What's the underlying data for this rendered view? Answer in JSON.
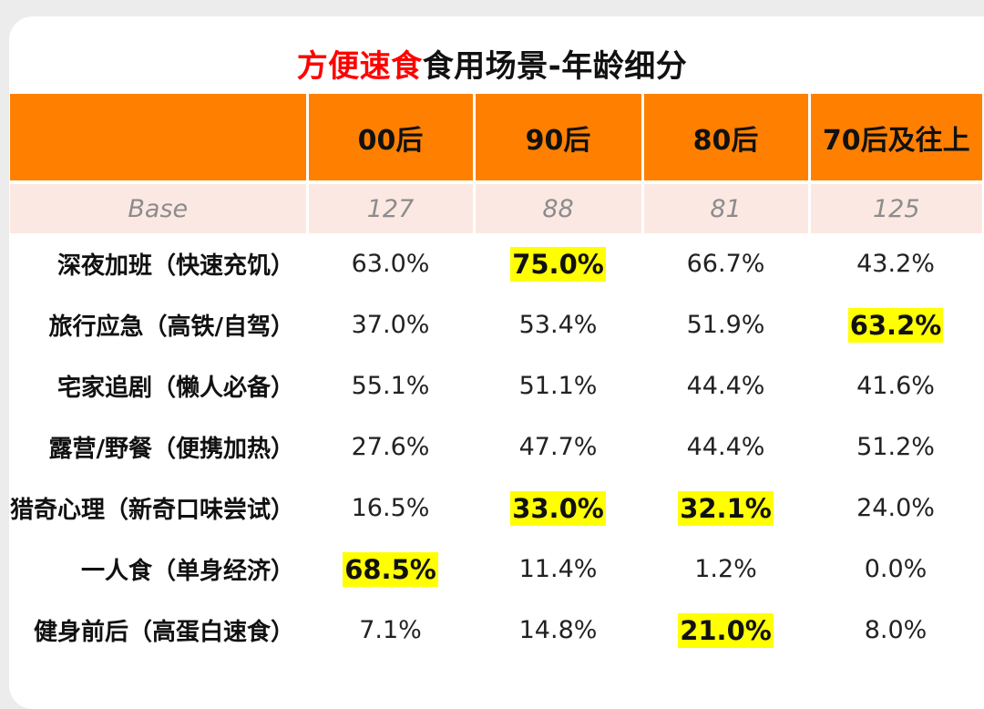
{
  "title": {
    "accent": "方便速食",
    "rest": "食用场景-年龄细分"
  },
  "colors": {
    "header_bg": "#ff8000",
    "base_bg": "#fce8e2",
    "highlight": "#ffff00",
    "title_accent": "#ff0000"
  },
  "chart_data": {
    "type": "table",
    "title": "方便速食食用场景-年龄细分",
    "columns": [
      "00后",
      "90后",
      "80后",
      "70后及往上"
    ],
    "base_label": "Base",
    "base": [
      "127",
      "88",
      "81",
      "125"
    ],
    "rows": [
      {
        "label": "深夜加班（快速充饥）",
        "values": [
          "63.0%",
          "75.0%",
          "66.7%",
          "43.2%"
        ],
        "highlight": [
          false,
          true,
          false,
          false
        ]
      },
      {
        "label": "旅行应急（高铁/自驾）",
        "values": [
          "37.0%",
          "53.4%",
          "51.9%",
          "63.2%"
        ],
        "highlight": [
          false,
          false,
          false,
          true
        ]
      },
      {
        "label": "宅家追剧（懒人必备）",
        "values": [
          "55.1%",
          "51.1%",
          "44.4%",
          "41.6%"
        ],
        "highlight": [
          false,
          false,
          false,
          false
        ]
      },
      {
        "label": "露营/野餐（便携加热）",
        "values": [
          "27.6%",
          "47.7%",
          "44.4%",
          "51.2%"
        ],
        "highlight": [
          false,
          false,
          false,
          false
        ]
      },
      {
        "label": "猎奇心理（新奇口味尝试）",
        "values": [
          "16.5%",
          "33.0%",
          "32.1%",
          "24.0%"
        ],
        "highlight": [
          false,
          true,
          true,
          false
        ]
      },
      {
        "label": "一人食（单身经济）",
        "values": [
          "68.5%",
          "11.4%",
          "1.2%",
          "0.0%"
        ],
        "highlight": [
          true,
          false,
          false,
          false
        ]
      },
      {
        "label": "健身前后（高蛋白速食）",
        "values": [
          "7.1%",
          "14.8%",
          "21.0%",
          "8.0%"
        ],
        "highlight": [
          false,
          false,
          true,
          false
        ]
      }
    ]
  }
}
